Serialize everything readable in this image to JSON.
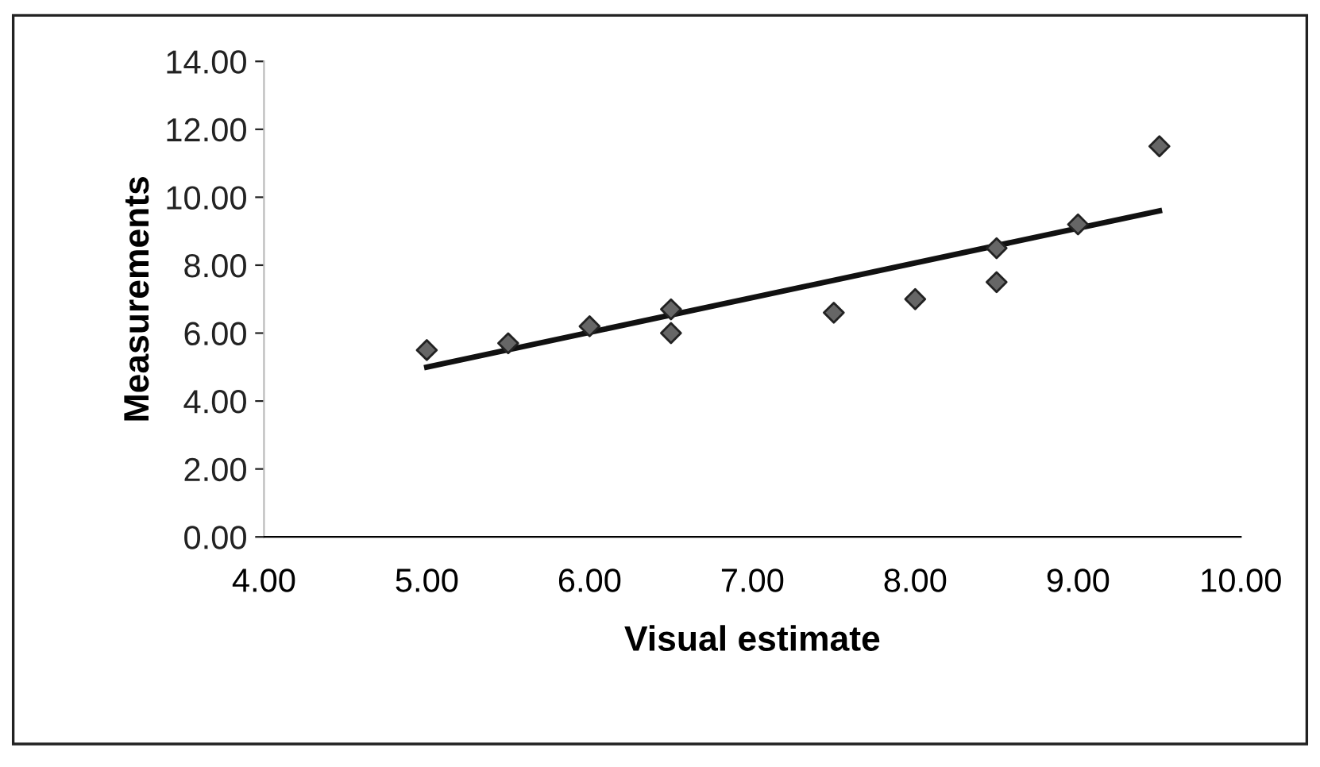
{
  "chart_data": {
    "type": "scatter",
    "xlabel": "Visual estimate",
    "ylabel": "Measurements",
    "xlim": [
      4,
      10
    ],
    "xticks": [
      {
        "value": 4,
        "label": "4.00"
      },
      {
        "value": 5,
        "label": "5.00"
      },
      {
        "value": 6,
        "label": "6.00"
      },
      {
        "value": 7,
        "label": "7.00"
      },
      {
        "value": 8,
        "label": "8.00"
      },
      {
        "value": 9,
        "label": "9.00"
      },
      {
        "value": 10,
        "label": "10.00"
      }
    ],
    "ylim": [
      0,
      14
    ],
    "yticks": [
      {
        "value": 0,
        "label": "0.00"
      },
      {
        "value": 2,
        "label": "2.00"
      },
      {
        "value": 4,
        "label": "4.00"
      },
      {
        "value": 6,
        "label": "6.00"
      },
      {
        "value": 8,
        "label": "8.00"
      },
      {
        "value": 10,
        "label": "10.00"
      },
      {
        "value": 12,
        "label": "12.00"
      },
      {
        "value": 14,
        "label": "14.00"
      }
    ],
    "grid": false,
    "legend": false,
    "marker": "diamond",
    "series": [
      {
        "color": "#666666",
        "x": [
          5.0,
          5.5,
          6.0,
          6.5,
          6.5,
          7.5,
          8.0,
          8.5,
          8.5,
          9.0,
          9.5
        ],
        "values": [
          5.5,
          5.7,
          6.2,
          6.7,
          6.0,
          6.6,
          7.0,
          8.5,
          7.5,
          9.2,
          11.5
        ]
      },
      {
        "type": "line",
        "color": "#111111",
        "marker": "none",
        "line_style": "solid",
        "x": [
          5.0,
          9.5
        ],
        "values": [
          5.0,
          9.6
        ]
      }
    ]
  }
}
